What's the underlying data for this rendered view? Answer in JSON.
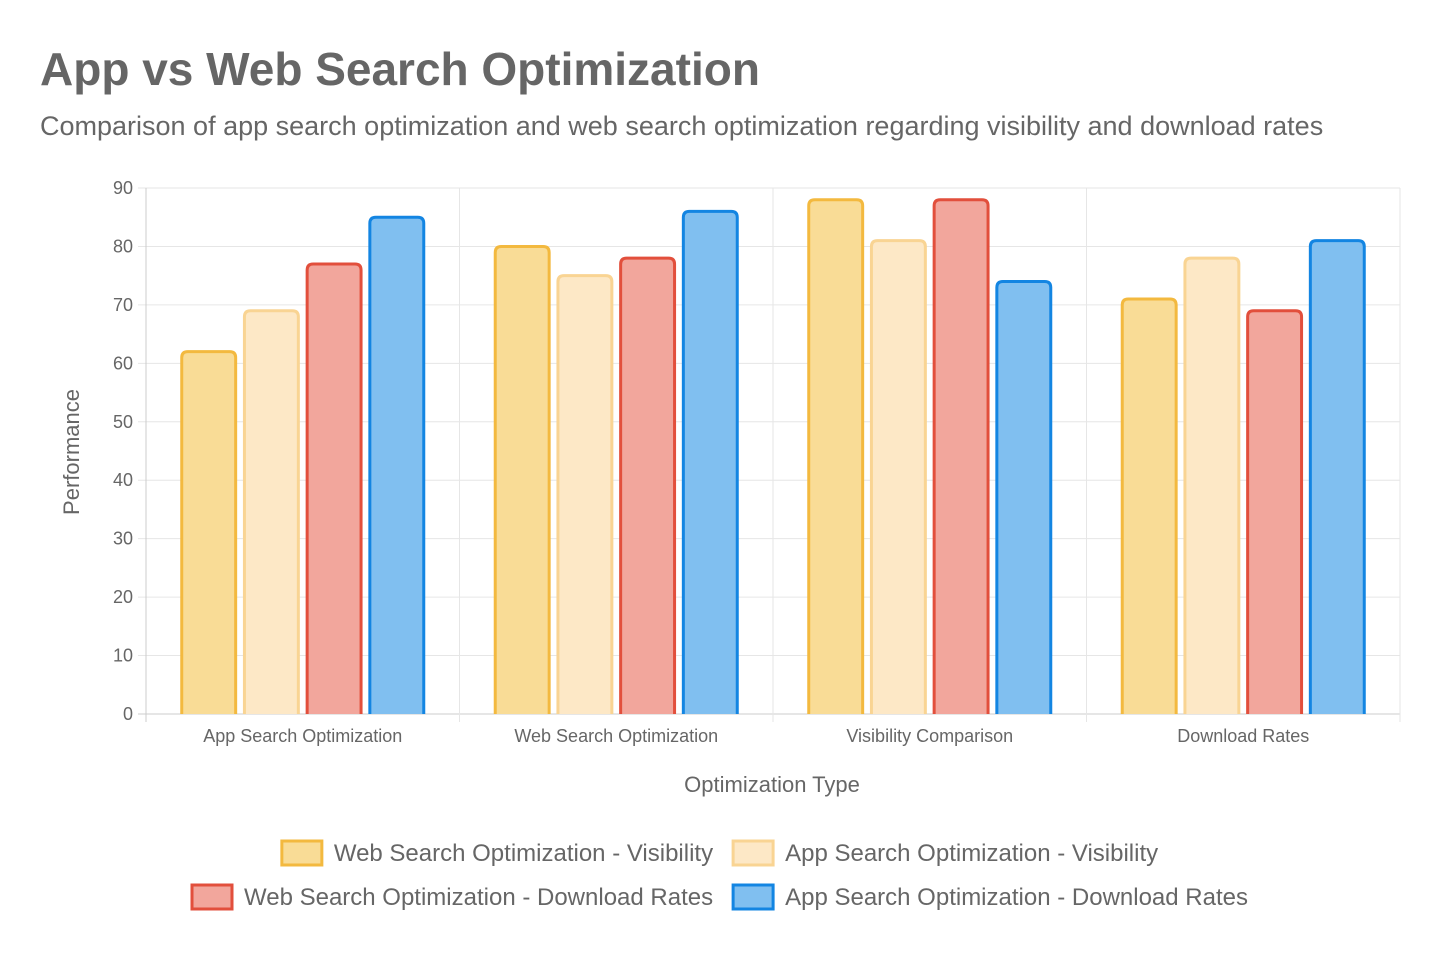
{
  "chart_data": {
    "type": "bar",
    "title": "App vs Web Search Optimization",
    "subtitle": "Comparison of app search optimization and web search optimization regarding visibility and download rates",
    "xlabel": "Optimization Type",
    "ylabel": "Performance",
    "categories": [
      "App Search Optimization",
      "Web Search Optimization",
      "Visibility Comparison",
      "Download Rates"
    ],
    "ylim": [
      0,
      90
    ],
    "yticks": [
      0,
      10,
      20,
      30,
      40,
      50,
      60,
      70,
      80,
      90
    ],
    "grid": true,
    "legend_position": "bottom",
    "series": [
      {
        "name": "Web Search Optimization - Visibility",
        "values": [
          62,
          80,
          88,
          71
        ],
        "fill": "#f9dc96",
        "stroke": "#f3b93f"
      },
      {
        "name": "App Search Optimization - Visibility",
        "values": [
          69,
          75,
          81,
          78
        ],
        "fill": "#fde8c6",
        "stroke": "#f9d493"
      },
      {
        "name": "Web Search Optimization - Download Rates",
        "values": [
          77,
          78,
          88,
          69
        ],
        "fill": "#f2a69c",
        "stroke": "#e24f3c"
      },
      {
        "name": "App Search Optimization - Download Rates",
        "values": [
          85,
          86,
          74,
          81
        ],
        "fill": "#80bff0",
        "stroke": "#1385e2"
      }
    ]
  }
}
